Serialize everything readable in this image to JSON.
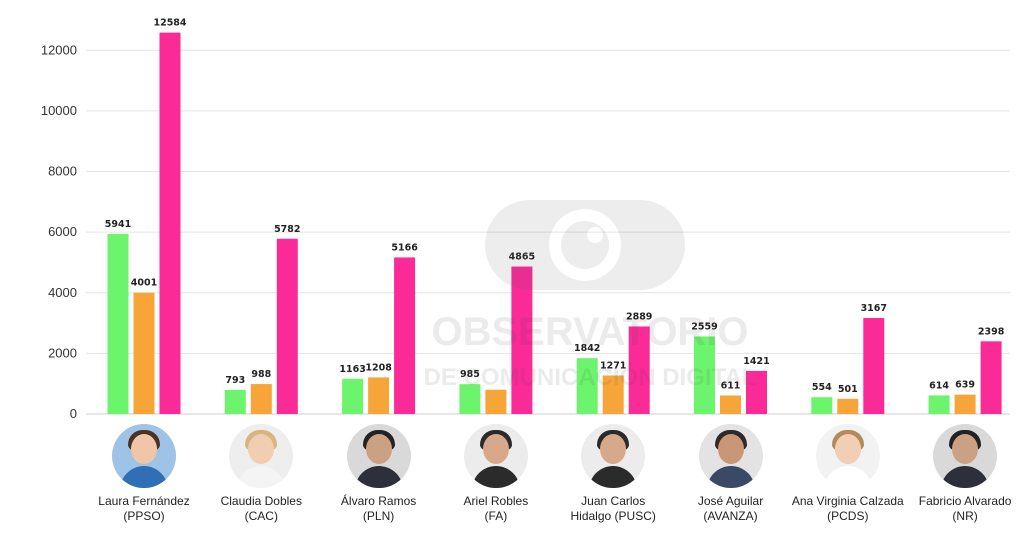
{
  "chart_data": {
    "type": "bar",
    "categories": [
      "Laura Fernández (PPSO)",
      "Claudia Dobles (CAC)",
      "Álvaro Ramos (PLN)",
      "Ariel Robles (FA)",
      "Juan Carlos Hidalgo (PUSC)",
      "José Aguilar (AVANZA)",
      "Ana Virginia Calzada (PCDS)",
      "Fabricio Alvarado (NR)"
    ],
    "series": [
      {
        "color": "#6cf56c",
        "values": [
          5941,
          793,
          1163,
          985,
          1842,
          2559,
          554,
          614
        ]
      },
      {
        "color": "#f7a538",
        "values": [
          4001,
          988,
          1208,
          800,
          1271,
          611,
          501,
          639
        ]
      },
      {
        "color": "#fa2a97",
        "values": [
          12584,
          5782,
          5166,
          4865,
          2889,
          1421,
          3167,
          2398
        ]
      }
    ],
    "data_labels": [
      [
        "5941",
        "793",
        "1163",
        "985",
        "1842",
        "2559",
        "554",
        "614"
      ],
      [
        "4001",
        "988",
        "1208",
        "",
        "1271",
        "611",
        "501",
        "639"
      ],
      [
        "12584",
        "5782",
        "5166",
        "4865",
        "2889",
        "1421",
        "3167",
        "2398"
      ]
    ],
    "ylim": [
      0,
      13000
    ],
    "yticks": [
      "0",
      "2000",
      "4000",
      "6000",
      "8000",
      "10000",
      "12000"
    ],
    "grid": true,
    "legend": "none"
  },
  "candidates": [
    {
      "line1": "Laura Fernández",
      "line2": "(PPSO)",
      "avatar": "woman-dark-hair-avatar"
    },
    {
      "line1": "Claudia Dobles",
      "line2": "(CAC)",
      "avatar": "woman-blonde-hair-avatar"
    },
    {
      "line1": "Álvaro Ramos",
      "line2": "(PLN)",
      "avatar": "man-suit-avatar"
    },
    {
      "line1": "Ariel Robles",
      "line2": "(FA)",
      "avatar": "man-beard-avatar"
    },
    {
      "line1": "Juan Carlos",
      "line2": "Hidalgo (PUSC)",
      "avatar": "man-beard-avatar"
    },
    {
      "line1": "José Aguilar",
      "line2": "(AVANZA)",
      "avatar": "man-smiling-avatar"
    },
    {
      "line1": "Ana Virginia Calzada",
      "line2": "(PCDS)",
      "avatar": "woman-light-hair-avatar"
    },
    {
      "line1": "Fabricio Alvarado",
      "line2": "(NR)",
      "avatar": "man-suit-avatar"
    }
  ],
  "watermark": {
    "line1": "OBSERVATORIO",
    "line2": "DE COMUNICACIÓN DIGITAL",
    "icon": "eye-logo-icon"
  }
}
